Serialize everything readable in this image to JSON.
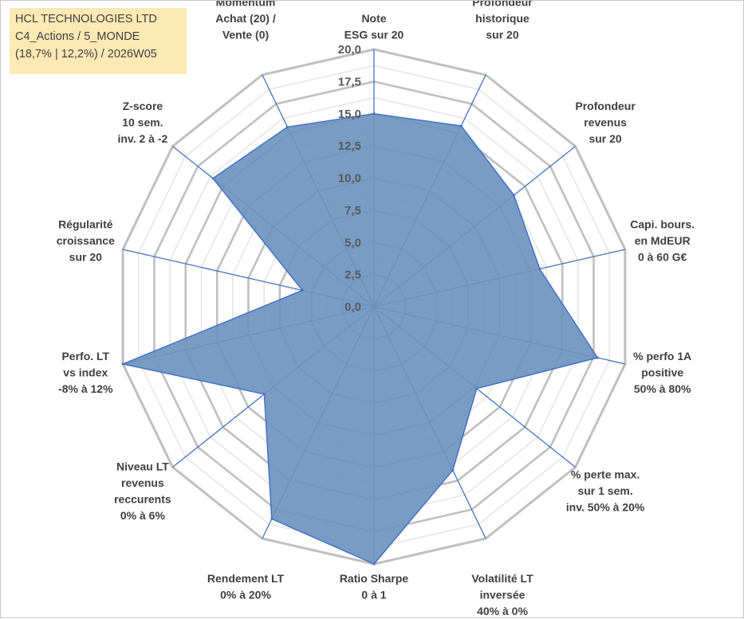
{
  "title_box": {
    "line1": "HCL TECHNOLOGIES LTD",
    "line2": "C4_Actions / 5_MONDE",
    "line3": "(18,7% | 12,2%) / 2026W05"
  },
  "chart_data": {
    "type": "radar",
    "r_min": 0,
    "r_max": 20,
    "r_ticks": [
      "0,0",
      "2,5",
      "5,0",
      "7,5",
      "10,0",
      "12,5",
      "15,0",
      "17,5",
      "20,0"
    ],
    "gridlines": "on",
    "legend": "none",
    "fill_color": "#6f93bf",
    "line_color": "#4472c4",
    "grid_color": "#bfbfbf",
    "axes": [
      {
        "label": [
          "Note",
          "ESG sur 20"
        ],
        "value": 15.0
      },
      {
        "label": [
          "Profondeur",
          "historique",
          "sur 20"
        ],
        "value": 15.6
      },
      {
        "label": [
          "Profondeur",
          "revenus",
          "sur 20"
        ],
        "value": 13.9
      },
      {
        "label": [
          "Capi. bours.",
          "en MdEUR",
          "0 à 60 G€"
        ],
        "value": 13.2
      },
      {
        "label": [
          "% perfo 1A",
          "positive",
          "50% à 80%"
        ],
        "value": 17.8
      },
      {
        "label": [
          "% perte max.",
          "sur 1 sem.",
          "inv. 50% à 20%"
        ],
        "value": 10.2
      },
      {
        "label": [
          "Volatilité LT",
          "inversée",
          "40% à 0%"
        ],
        "value": 14.1
      },
      {
        "label": [
          "Ratio Sharpe",
          "0 à 1"
        ],
        "value": 20.0
      },
      {
        "label": [
          "Rendement LT",
          "0% à 20%"
        ],
        "value": 18.3
      },
      {
        "label": [
          "Niveau LT",
          "revenus",
          "reccurents",
          "0% à 6%"
        ],
        "value": 10.9
      },
      {
        "label": [
          "Perfo. LT",
          "vs index",
          "-8% à 12%"
        ],
        "value": 20.0
      },
      {
        "label": [
          "Régularité",
          "croissance",
          "sur 20"
        ],
        "value": 5.7
      },
      {
        "label": [
          "Z-score",
          "10 sem.",
          "inv. 2 à -2"
        ],
        "value": 16.0
      },
      {
        "label": [
          "Momentum",
          "Achat (20) /",
          "Vente (0)"
        ],
        "value": 15.5
      }
    ]
  }
}
